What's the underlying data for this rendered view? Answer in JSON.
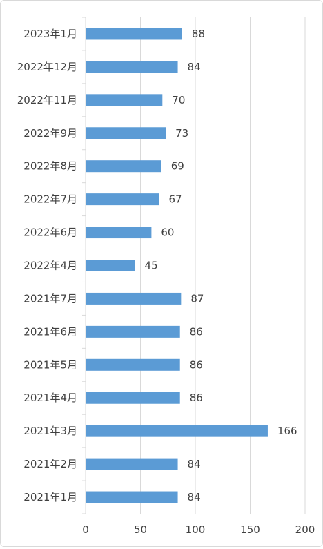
{
  "chart_data": {
    "type": "bar",
    "orientation": "horizontal",
    "title": "",
    "xlabel": "",
    "ylabel": "",
    "categories": [
      "2023年1月",
      "2022年12月",
      "2022年11月",
      "2022年9月",
      "2022年8月",
      "2022年7月",
      "2022年6月",
      "2022年4月",
      "2021年7月",
      "2021年6月",
      "2021年5月",
      "2021年4月",
      "2021年3月",
      "2021年2月",
      "2021年1月"
    ],
    "values": [
      88,
      84,
      70,
      73,
      69,
      67,
      60,
      45,
      87,
      86,
      86,
      86,
      166,
      84,
      84
    ],
    "xlim": [
      0,
      200
    ],
    "x_ticks": [
      0,
      50,
      100,
      150,
      200
    ],
    "grid": true,
    "legend": false,
    "data_labels": true,
    "bar_color": "#5b9bd5",
    "grid_color": "#d9d9d9",
    "text_color": "#404040"
  }
}
